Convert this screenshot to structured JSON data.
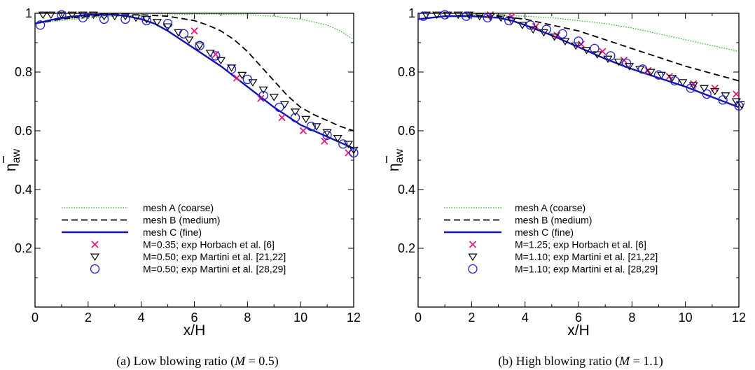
{
  "colors": {
    "mesh_a": "#22b022",
    "mesh_b": "#000000",
    "mesh_c": "#1414b4",
    "horbach": "#e8187a",
    "martini_a": "#000000",
    "martini_b": "#2020d0"
  },
  "chart_data": [
    {
      "type": "line",
      "caption": {
        "prefix": "(a) Low blowing ratio (",
        "var": "M",
        "suffix": " = 0.5)"
      },
      "xlabel": "x/H",
      "ylabel": {
        "main": "η",
        "sub": "aw"
      },
      "xlim": [
        0,
        12
      ],
      "ylim": [
        0,
        1
      ],
      "xticks": [
        "0",
        "2",
        "4",
        "6",
        "8",
        "10",
        "12"
      ],
      "yticks": [
        "0.2",
        "0.4",
        "0.6",
        "0.8",
        "1"
      ],
      "legend_position": "bottom-left",
      "series": [
        {
          "name": "mesh A (coarse)",
          "kind": "line",
          "style": "dotted",
          "color_key": "mesh_a",
          "x": [
            0,
            1,
            2,
            3,
            4,
            5,
            6,
            7,
            8,
            9,
            10,
            11,
            11.5,
            12
          ],
          "y": [
            0.965,
            0.975,
            0.985,
            0.99,
            0.993,
            0.995,
            0.997,
            0.997,
            0.995,
            0.99,
            0.98,
            0.96,
            0.94,
            0.91
          ]
        },
        {
          "name": "mesh B (medium)",
          "kind": "line",
          "style": "dashed",
          "color_key": "mesh_b",
          "x": [
            0,
            1,
            2,
            3,
            4,
            5,
            6,
            6.5,
            7,
            7.5,
            8,
            8.5,
            9,
            9.5,
            10,
            10.5,
            11,
            11.5,
            12
          ],
          "y": [
            0.965,
            0.98,
            0.99,
            0.995,
            0.995,
            0.99,
            0.975,
            0.96,
            0.94,
            0.91,
            0.87,
            0.82,
            0.77,
            0.72,
            0.68,
            0.655,
            0.635,
            0.615,
            0.6
          ]
        },
        {
          "name": "mesh C (fine)",
          "kind": "line",
          "style": "solid",
          "color_key": "mesh_c",
          "x": [
            0,
            1,
            2,
            3,
            3.5,
            4,
            4.5,
            5,
            5.5,
            6,
            6.5,
            7,
            7.5,
            8,
            8.5,
            9,
            9.5,
            10,
            10.5,
            11,
            11.5,
            12
          ],
          "y": [
            0.965,
            0.985,
            0.995,
            0.995,
            0.99,
            0.98,
            0.965,
            0.94,
            0.91,
            0.88,
            0.85,
            0.82,
            0.785,
            0.75,
            0.715,
            0.68,
            0.65,
            0.62,
            0.6,
            0.58,
            0.56,
            0.54
          ]
        },
        {
          "name": "M=0.35; exp Horbach et al. [6]",
          "kind": "marker",
          "marker": "x",
          "color_key": "horbach",
          "x": [
            6.0,
            6.8,
            7.6,
            8.5,
            9.3,
            10.1,
            10.9,
            11.8
          ],
          "y": [
            0.94,
            0.86,
            0.78,
            0.71,
            0.645,
            0.6,
            0.565,
            0.525
          ]
        },
        {
          "name": "M=0.50; exp Martini et al. [21,22]",
          "kind": "marker",
          "marker": "triangle-down",
          "color_key": "martini_a",
          "x": [
            0.3,
            0.6,
            1.0,
            1.4,
            1.8,
            2.2,
            2.6,
            3.0,
            3.4,
            3.8,
            4.2,
            4.6,
            5.0,
            5.4,
            5.8,
            6.2,
            6.6,
            7.0,
            7.4,
            7.8,
            8.2,
            8.6,
            9.0,
            9.4,
            9.8,
            10.2,
            10.6,
            11.0,
            11.4,
            11.8,
            12.0
          ],
          "y": [
            0.995,
            0.995,
            0.995,
            0.995,
            0.995,
            0.995,
            0.99,
            0.99,
            0.99,
            0.985,
            0.98,
            0.97,
            0.955,
            0.935,
            0.91,
            0.89,
            0.865,
            0.84,
            0.815,
            0.79,
            0.765,
            0.74,
            0.715,
            0.69,
            0.665,
            0.64,
            0.615,
            0.595,
            0.575,
            0.555,
            0.535
          ]
        },
        {
          "name": "M=0.50; exp Martini et al. [28,29]",
          "kind": "marker",
          "marker": "circle",
          "color_key": "martini_b",
          "x": [
            0.2,
            1.0,
            1.8,
            2.6,
            3.4,
            4.2,
            5.0,
            5.6,
            6.2,
            6.8,
            7.4,
            8.0,
            8.6,
            9.2,
            9.8,
            10.4,
            11.0,
            11.6,
            12.0
          ],
          "y": [
            0.96,
            0.995,
            0.985,
            0.98,
            0.98,
            0.975,
            0.965,
            0.93,
            0.89,
            0.855,
            0.81,
            0.775,
            0.72,
            0.68,
            0.645,
            0.615,
            0.585,
            0.555,
            0.525
          ]
        }
      ]
    },
    {
      "type": "line",
      "caption": {
        "prefix": "(b) High blowing ratio (",
        "var": "M",
        "suffix": " = 1.1)"
      },
      "xlabel": "x/H",
      "ylabel": {
        "main": "η",
        "sub": "aw"
      },
      "xlim": [
        0,
        12
      ],
      "ylim": [
        0,
        1
      ],
      "xticks": [
        "0",
        "2",
        "4",
        "6",
        "8",
        "10",
        "12"
      ],
      "yticks": [
        "0.2",
        "0.4",
        "0.6",
        "0.8",
        "1"
      ],
      "legend_position": "bottom-left",
      "series": [
        {
          "name": "mesh A (coarse)",
          "kind": "line",
          "style": "dotted",
          "color_key": "mesh_a",
          "x": [
            0,
            1,
            2,
            3,
            4,
            5,
            6,
            7,
            8,
            9,
            10,
            11,
            12
          ],
          "y": [
            0.98,
            0.99,
            0.995,
            0.995,
            0.99,
            0.985,
            0.975,
            0.965,
            0.95,
            0.93,
            0.91,
            0.89,
            0.87
          ]
        },
        {
          "name": "mesh B (medium)",
          "kind": "line",
          "style": "dashed",
          "color_key": "mesh_b",
          "x": [
            0,
            1,
            2,
            3,
            4,
            5,
            6,
            7,
            8,
            9,
            10,
            11,
            12
          ],
          "y": [
            0.98,
            0.99,
            0.995,
            0.99,
            0.98,
            0.96,
            0.94,
            0.91,
            0.88,
            0.85,
            0.82,
            0.795,
            0.77
          ]
        },
        {
          "name": "mesh C (fine)",
          "kind": "line",
          "style": "solid",
          "color_key": "mesh_c",
          "x": [
            0,
            1,
            2,
            3,
            3.5,
            4,
            5,
            6,
            7,
            8,
            9,
            10,
            11,
            12
          ],
          "y": [
            0.98,
            0.99,
            0.99,
            0.985,
            0.975,
            0.96,
            0.925,
            0.885,
            0.845,
            0.81,
            0.78,
            0.75,
            0.715,
            0.68
          ]
        },
        {
          "name": "M=1.25; exp Horbach et al. [6]",
          "kind": "marker",
          "marker": "x",
          "color_key": "horbach",
          "x": [
            2.7,
            3.5,
            4.4,
            5.2,
            6.1,
            6.9,
            7.7,
            8.6,
            9.4,
            10.3,
            11.1,
            11.9
          ],
          "y": [
            0.995,
            0.99,
            0.955,
            0.925,
            0.895,
            0.87,
            0.84,
            0.805,
            0.785,
            0.76,
            0.745,
            0.725
          ]
        },
        {
          "name": "M=1.10; exp Martini et al. [21,22]",
          "kind": "marker",
          "marker": "triangle-down",
          "color_key": "martini_a",
          "x": [
            0.3,
            0.7,
            1.1,
            1.5,
            1.9,
            2.3,
            2.7,
            3.1,
            3.5,
            3.9,
            4.3,
            4.7,
            5.1,
            5.5,
            5.9,
            6.3,
            6.7,
            7.1,
            7.5,
            7.9,
            8.3,
            8.7,
            9.1,
            9.5,
            9.9,
            10.3,
            10.7,
            11.1,
            11.5,
            11.9,
            12.1
          ],
          "y": [
            0.995,
            0.995,
            0.995,
            0.995,
            0.995,
            0.99,
            0.99,
            0.985,
            0.975,
            0.96,
            0.945,
            0.935,
            0.92,
            0.905,
            0.89,
            0.875,
            0.86,
            0.845,
            0.835,
            0.82,
            0.81,
            0.8,
            0.79,
            0.78,
            0.765,
            0.755,
            0.745,
            0.735,
            0.72,
            0.7,
            0.69
          ]
        },
        {
          "name": "M=1.10; exp Martini et al. [28,29]",
          "kind": "marker",
          "marker": "circle",
          "color_key": "martini_b",
          "x": [
            0.2,
            1.0,
            1.8,
            2.6,
            3.4,
            4.2,
            4.8,
            5.4,
            6.0,
            6.6,
            7.2,
            7.8,
            8.4,
            9.0,
            9.6,
            10.2,
            10.8,
            11.4,
            12.0
          ],
          "y": [
            0.99,
            0.995,
            0.99,
            0.985,
            0.975,
            0.96,
            0.945,
            0.93,
            0.905,
            0.88,
            0.855,
            0.83,
            0.81,
            0.79,
            0.77,
            0.745,
            0.725,
            0.705,
            0.685
          ]
        }
      ]
    }
  ]
}
